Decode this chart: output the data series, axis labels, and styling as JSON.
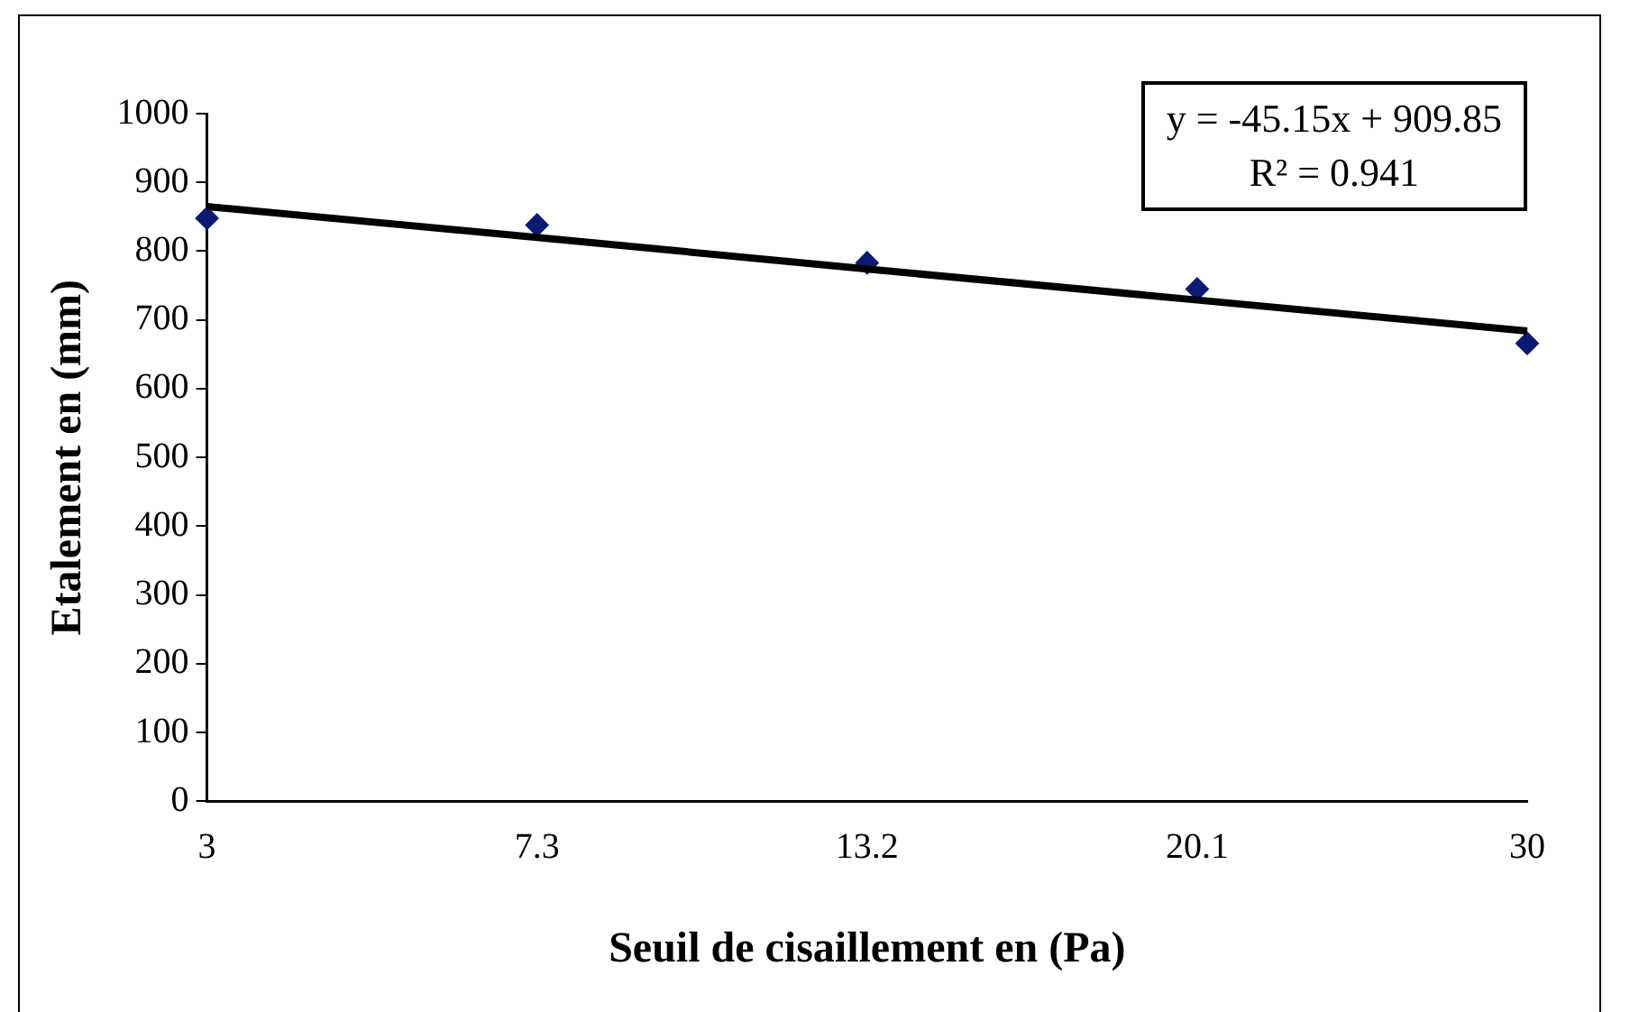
{
  "chart_data": {
    "type": "scatter",
    "xlabel": "Seuil de cisaillement en (Pa)",
    "ylabel": "Etalement en (mm)",
    "categories": [
      "3",
      "7.3",
      "13.2",
      "20.1",
      "30"
    ],
    "series": [
      {
        "color": "#0d1a73",
        "values": [
          848,
          838,
          783,
          745,
          666
        ]
      },
      {
        "type": "line",
        "marker": "none",
        "color": "#000000",
        "values": [
          865,
          820,
          774,
          729,
          684
        ]
      }
    ],
    "ylim": [
      0,
      1000
    ],
    "yticks": [
      0,
      100,
      200,
      300,
      400,
      500,
      600,
      700,
      800,
      900,
      1000
    ],
    "annotations": [
      "y = -45.15x + 909.85",
      "R² = 0.941"
    ],
    "grid": false,
    "legend": false,
    "marker": "diamond",
    "line_style": "solid"
  }
}
